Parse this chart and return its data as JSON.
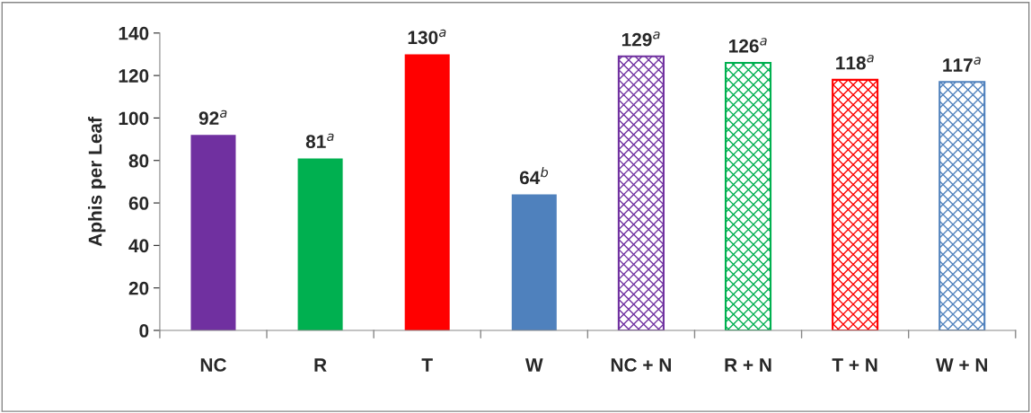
{
  "chart_data": {
    "type": "bar",
    "ylabel": "Aphis per Leaf",
    "categories": [
      "NC",
      "R",
      "T",
      "W",
      "NC + N",
      "R + N",
      "T + N",
      "W + N"
    ],
    "series": [
      {
        "values": [
          92,
          81,
          130,
          64,
          null,
          null,
          null,
          null
        ],
        "colors": [
          "#7030a0",
          "#00b050",
          "#ff0000",
          "#4f81bd",
          null,
          null,
          null,
          null
        ],
        "value_labels": [
          "92$^{a}$",
          "81$^{a}$",
          "130$^{a}$",
          "64$^{b}$",
          null,
          null,
          null,
          null
        ]
      },
      {
        "values": [
          null,
          null,
          null,
          null,
          129,
          126,
          118,
          117
        ],
        "colors": [
          null,
          null,
          null,
          null,
          "#7030a0",
          "#00b050",
          "#ff0000",
          "#4f81bd"
        ],
        "value_labels": [
          null,
          null,
          null,
          null,
          "129$^{a}$",
          "126$^{a}$",
          "118$^{a}$",
          "117$^{a}$"
        ]
      }
    ],
    "ylim": [
      0,
      140
    ],
    "yticks": [
      0,
      20,
      40,
      60,
      80,
      100,
      120,
      140
    ],
    "grid": false,
    "legend": false
  }
}
